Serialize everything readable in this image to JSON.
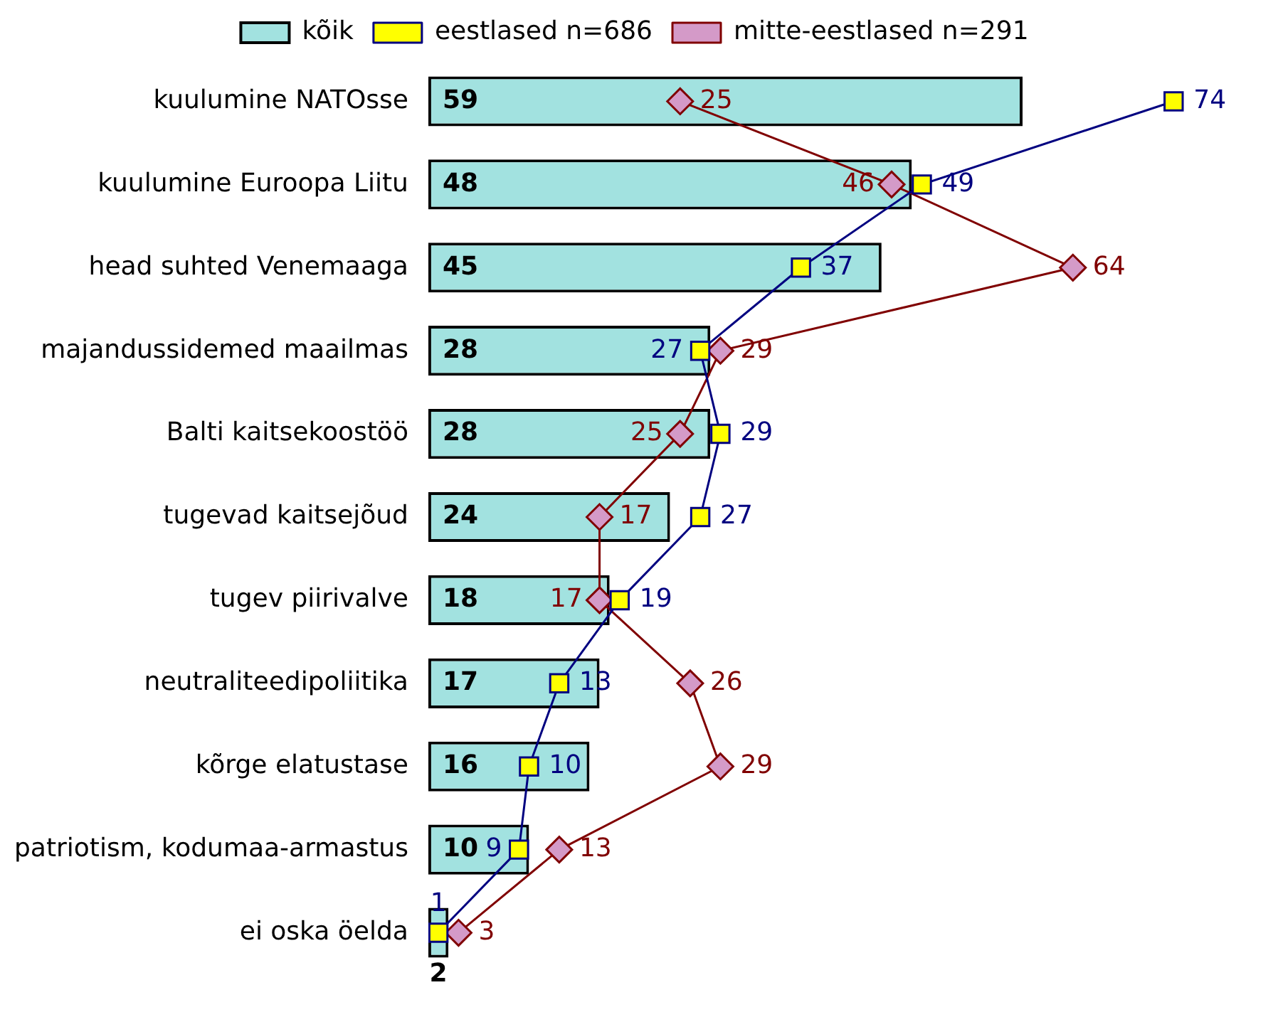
{
  "chart_data": {
    "type": "bar",
    "orientation": "horizontal",
    "categories": [
      "kuulumine NATOsse",
      "kuulumine Euroopa Liitu",
      "head suhted Venemaaga",
      "majandussidemed maailmas",
      "Balti kaitsekoostöö",
      "tugevad kaitsejõud",
      "tugev piirivalve",
      "neutraliteedipoliitika",
      "kõrge elatustase",
      "patriotism, kodumaa-armastus",
      "ei oska öelda"
    ],
    "series": [
      {
        "name": "kõik",
        "color": "#a2e2e0",
        "values": [
          59,
          48,
          45,
          28,
          28,
          24,
          18,
          17,
          16,
          10,
          2
        ]
      },
      {
        "name": "eestlased n=686",
        "type": "line",
        "color": "#000080",
        "marker": "square",
        "values": [
          74,
          49,
          37,
          27,
          29,
          27,
          19,
          13,
          10,
          9,
          1
        ]
      },
      {
        "name": "mitte-eestlased n=291",
        "type": "line",
        "color": "#800000",
        "marker": "diamond",
        "values": [
          25,
          46,
          64,
          29,
          25,
          17,
          17,
          26,
          29,
          13,
          3
        ]
      }
    ],
    "data_labels": true,
    "legend": "top",
    "tick_labels": "y"
  }
}
